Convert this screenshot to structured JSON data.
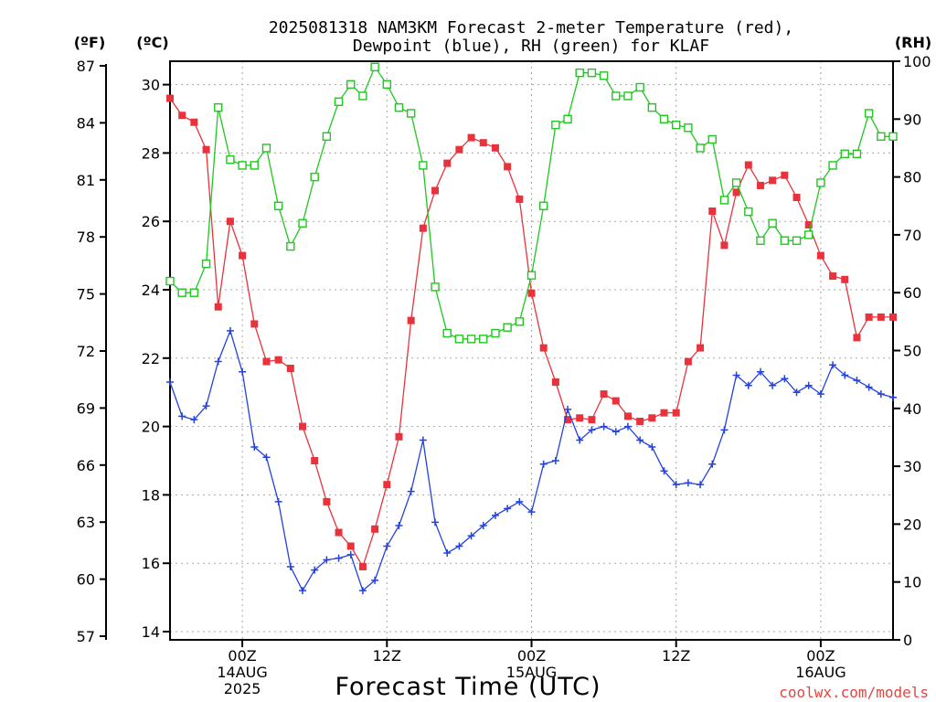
{
  "colors": {
    "temperature": "#e8323c",
    "dewpoint": "#2342de",
    "rh": "#1ec81e",
    "axis": "#000000",
    "grid": "#a8a8a8",
    "credit": "#e0473e"
  },
  "chart_data": {
    "type": "line",
    "title": "2025081318 NAM3KM Forecast 2-meter Temperature (red),",
    "subtitle": "Dewpoint (blue), RH (green) for KLAF",
    "xlabel": "Forecast Time (UTC)",
    "credit": "coolwx.com/models",
    "x": [
      0,
      1,
      2,
      3,
      4,
      5,
      6,
      7,
      8,
      9,
      10,
      11,
      12,
      13,
      14,
      15,
      16,
      17,
      18,
      19,
      20,
      21,
      22,
      23,
      24,
      25,
      26,
      27,
      28,
      29,
      30,
      31,
      32,
      33,
      34,
      35,
      36,
      37,
      38,
      39,
      40,
      41,
      42,
      43,
      44,
      45,
      46,
      47,
      48,
      49,
      50,
      51,
      52,
      53,
      54,
      55,
      56,
      57,
      58,
      59,
      60
    ],
    "xlim": [
      0,
      60
    ],
    "x_ticks": [
      {
        "x": 6,
        "lines": [
          "00Z",
          "14AUG",
          "2025"
        ]
      },
      {
        "x": 18,
        "lines": [
          "12Z"
        ]
      },
      {
        "x": 30,
        "lines": [
          "00Z",
          "15AUG"
        ]
      },
      {
        "x": 42,
        "lines": [
          "12Z"
        ]
      },
      {
        "x": 54,
        "lines": [
          "00Z",
          "16AUG"
        ]
      }
    ],
    "left_axis_f": {
      "label": "(ºF)",
      "ticks": [
        "57",
        "60",
        "63",
        "66",
        "69",
        "72",
        "75",
        "78",
        "81",
        "84",
        "87"
      ]
    },
    "left_axis_c": {
      "label": "(ºC)",
      "ylim": [
        14,
        30.6
      ],
      "ticks": [
        "14",
        "16",
        "18",
        "20",
        "22",
        "24",
        "26",
        "28",
        "30"
      ]
    },
    "right_axis": {
      "label": "(RH)",
      "ylim": [
        0,
        100
      ],
      "ticks": [
        "0",
        "10",
        "20",
        "30",
        "40",
        "50",
        "60",
        "70",
        "80",
        "90",
        "100"
      ]
    },
    "grid": true,
    "series": [
      {
        "key": "temperature",
        "axis": "c",
        "marker": "filled-square",
        "values": [
          29.6,
          29.1,
          28.9,
          28.1,
          23.5,
          26.0,
          25.0,
          23.0,
          21.9,
          21.95,
          21.7,
          20.0,
          19.0,
          17.8,
          16.9,
          16.5,
          15.9,
          17.0,
          18.3,
          19.7,
          23.1,
          25.8,
          26.9,
          27.7,
          28.1,
          28.45,
          28.3,
          28.15,
          27.6,
          26.65,
          23.9,
          22.3,
          21.3,
          20.2,
          20.25,
          20.2,
          20.95,
          20.75,
          20.3,
          20.15,
          20.25,
          20.4,
          20.4,
          21.9,
          22.3,
          26.3,
          25.3,
          26.85,
          27.65,
          27.05,
          27.2,
          27.35,
          26.7,
          25.9,
          25.0,
          24.4,
          24.3,
          22.6,
          23.2,
          23.2,
          23.2
        ]
      },
      {
        "key": "dewpoint",
        "axis": "c",
        "marker": "plus",
        "values": [
          21.3,
          20.3,
          20.2,
          20.6,
          21.9,
          22.8,
          21.6,
          19.4,
          19.1,
          17.8,
          15.9,
          15.2,
          15.8,
          16.1,
          16.15,
          16.25,
          15.2,
          15.5,
          16.5,
          17.1,
          18.1,
          19.6,
          17.2,
          16.3,
          16.5,
          16.8,
          17.1,
          17.4,
          17.6,
          17.8,
          17.5,
          18.9,
          19.0,
          20.5,
          19.6,
          19.9,
          20.0,
          19.85,
          20.0,
          19.6,
          19.4,
          18.7,
          18.3,
          18.35,
          18.3,
          18.9,
          19.9,
          21.5,
          21.2,
          21.6,
          21.2,
          21.4,
          21.0,
          21.2,
          20.95,
          21.8,
          21.5,
          21.35,
          21.15,
          20.95,
          20.85
        ]
      },
      {
        "key": "rh",
        "axis": "rh",
        "marker": "open-square",
        "values": [
          62,
          60,
          60,
          65,
          92,
          83,
          82,
          82,
          85,
          75,
          68,
          72,
          80,
          87,
          93,
          96,
          94,
          99,
          96,
          92,
          91,
          82,
          61,
          53,
          52,
          52,
          52,
          53,
          54,
          55,
          63,
          75,
          89,
          90,
          98,
          98,
          97.5,
          94,
          94,
          95.5,
          92,
          90,
          89,
          88.5,
          85,
          86.5,
          76,
          79,
          74,
          69,
          72,
          69,
          69,
          70,
          79,
          82,
          84,
          84,
          91,
          87,
          87
        ]
      }
    ]
  }
}
